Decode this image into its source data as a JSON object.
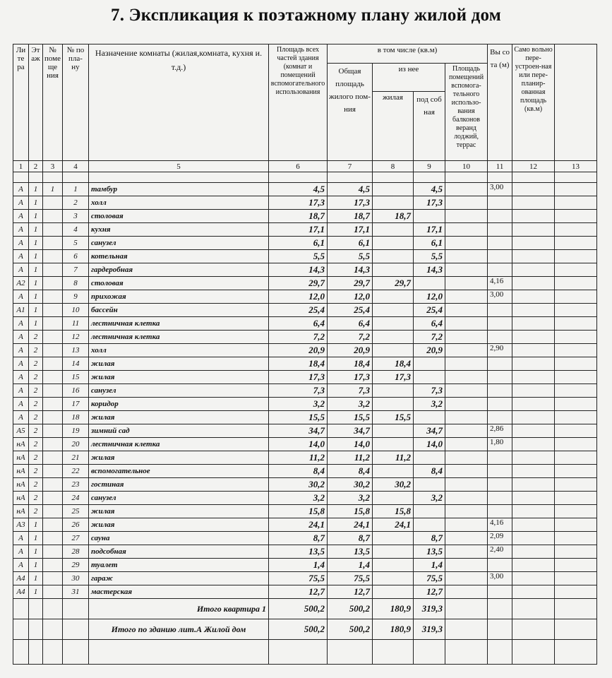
{
  "title": "7. Экспликация к поэтажному плану жилой дом",
  "headers": {
    "c1": "Ли те ра",
    "c2": "Эт аж",
    "c3": "№ поме ще ния",
    "c4": "№ по пла- ну",
    "c5": "Назначение комнаты (жилая,комната, кухня и. т.д.)",
    "c6": "Площадь всех частей здания (комнат и помещений вспомогательного использования",
    "group": "в том числе (кв.м)",
    "c7": "Общая площадь жилого пом-ния",
    "sub": "из нее",
    "c8": "жилая",
    "c9": "под соб ная",
    "c10": "Площадь помещений вспомога-тельного использо-вания балконов веранд лоджий, террас",
    "c11": "Вы со та (м)",
    "c12": "Само вольно пере-устроен-ная или пере-планир-ованная площадь (кв.м)",
    "c13": ""
  },
  "column_numbers": [
    "1",
    "2",
    "3",
    "4",
    "5",
    "6",
    "7",
    "8",
    "9",
    "10",
    "11",
    "12",
    "13"
  ],
  "rows": [
    [
      "А",
      "1",
      "1",
      "1",
      "тамбур",
      "4,5",
      "4,5",
      "",
      "4,5",
      "3,00"
    ],
    [
      "А",
      "1",
      "",
      "2",
      "холл",
      "17,3",
      "17,3",
      "",
      "17,3",
      ""
    ],
    [
      "А",
      "1",
      "",
      "3",
      "столовая",
      "18,7",
      "18,7",
      "18,7",
      "",
      ""
    ],
    [
      "А",
      "1",
      "",
      "4",
      "кухня",
      "17,1",
      "17,1",
      "",
      "17,1",
      ""
    ],
    [
      "А",
      "1",
      "",
      "5",
      "санузел",
      "6,1",
      "6,1",
      "",
      "6,1",
      ""
    ],
    [
      "А",
      "1",
      "",
      "6",
      "котельная",
      "5,5",
      "5,5",
      "",
      "5,5",
      ""
    ],
    [
      "А",
      "1",
      "",
      "7",
      "гардеробная",
      "14,3",
      "14,3",
      "",
      "14,3",
      ""
    ],
    [
      "А2",
      "1",
      "",
      "8",
      "столовая",
      "29,7",
      "29,7",
      "29,7",
      "",
      "4,16"
    ],
    [
      "А",
      "1",
      "",
      "9",
      "прихожая",
      "12,0",
      "12,0",
      "",
      "12,0",
      "3,00"
    ],
    [
      "А1",
      "1",
      "",
      "10",
      "бассейн",
      "25,4",
      "25,4",
      "",
      "25,4",
      ""
    ],
    [
      "А",
      "1",
      "",
      "11",
      "лестничная клетка",
      "6,4",
      "6,4",
      "",
      "6,4",
      ""
    ],
    [
      "А",
      "2",
      "",
      "12",
      "лестничная клетка",
      "7,2",
      "7,2",
      "",
      "7,2",
      ""
    ],
    [
      "А",
      "2",
      "",
      "13",
      "холл",
      "20,9",
      "20,9",
      "",
      "20,9",
      "2,90"
    ],
    [
      "А",
      "2",
      "",
      "14",
      "жилая",
      "18,4",
      "18,4",
      "18,4",
      "",
      ""
    ],
    [
      "А",
      "2",
      "",
      "15",
      "жилая",
      "17,3",
      "17,3",
      "17,3",
      "",
      ""
    ],
    [
      "А",
      "2",
      "",
      "16",
      "санузел",
      "7,3",
      "7,3",
      "",
      "7,3",
      ""
    ],
    [
      "А",
      "2",
      "",
      "17",
      "коридор",
      "3,2",
      "3,2",
      "",
      "3,2",
      ""
    ],
    [
      "А",
      "2",
      "",
      "18",
      "жилая",
      "15,5",
      "15,5",
      "15,5",
      "",
      ""
    ],
    [
      "А5",
      "2",
      "",
      "19",
      "зимний сад",
      "34,7",
      "34,7",
      "",
      "34,7",
      "2,86"
    ],
    [
      "нА",
      "2",
      "",
      "20",
      "лестничная клетка",
      "14,0",
      "14,0",
      "",
      "14,0",
      "1,80"
    ],
    [
      "нА",
      "2",
      "",
      "21",
      "жилая",
      "11,2",
      "11,2",
      "11,2",
      "",
      ""
    ],
    [
      "нА",
      "2",
      "",
      "22",
      "вспомогательное",
      "8,4",
      "8,4",
      "",
      "8,4",
      ""
    ],
    [
      "нА",
      "2",
      "",
      "23",
      "гостиная",
      "30,2",
      "30,2",
      "30,2",
      "",
      ""
    ],
    [
      "нА",
      "2",
      "",
      "24",
      "санузел",
      "3,2",
      "3,2",
      "",
      "3,2",
      ""
    ],
    [
      "нА",
      "2",
      "",
      "25",
      "жилая",
      "15,8",
      "15,8",
      "15,8",
      "",
      ""
    ],
    [
      "А3",
      "1",
      "",
      "26",
      "жилая",
      "24,1",
      "24,1",
      "24,1",
      "",
      "4,16"
    ],
    [
      "А",
      "1",
      "",
      "27",
      "сауна",
      "8,7",
      "8,7",
      "",
      "8,7",
      "2,09"
    ],
    [
      "А",
      "1",
      "",
      "28",
      "подсобная",
      "13,5",
      "13,5",
      "",
      "13,5",
      "2,40"
    ],
    [
      "А",
      "1",
      "",
      "29",
      "туалет",
      "1,4",
      "1,4",
      "",
      "1,4",
      ""
    ],
    [
      "А4",
      "1",
      "",
      "30",
      "гараж",
      "75,5",
      "75,5",
      "",
      "75,5",
      "3,00"
    ],
    [
      "А4",
      "1",
      "",
      "31",
      "мастерская",
      "12,7",
      "12,7",
      "",
      "12,7",
      ""
    ]
  ],
  "totals": [
    {
      "label": "Итого квартира 1",
      "c6": "500,2",
      "c7": "500,2",
      "c8": "180,9",
      "c9": "319,3"
    },
    {
      "label": "Итого по зданию лит.А Жилой дом",
      "c6": "500,2",
      "c7": "500,2",
      "c8": "180,9",
      "c9": "319,3"
    }
  ]
}
